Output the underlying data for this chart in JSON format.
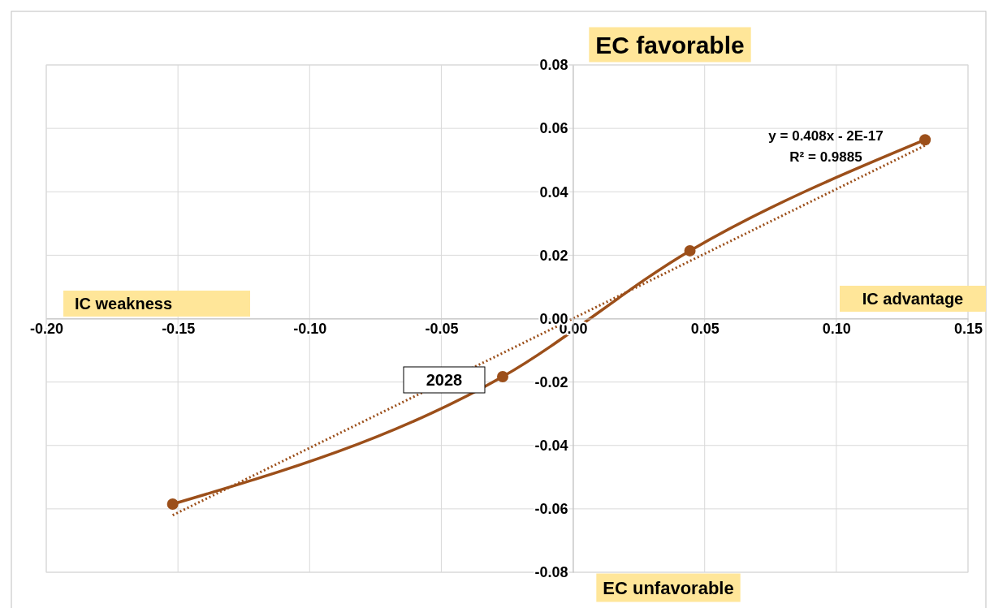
{
  "chart_data": {
    "type": "line",
    "x": [
      -0.152,
      -0.0267,
      0.0444,
      0.1337
    ],
    "xlim": [
      -0.2,
      0.15
    ],
    "xticks": [
      {
        "value": -0.2,
        "label": "-0.20"
      },
      {
        "value": -0.15,
        "label": "-0.15"
      },
      {
        "value": -0.1,
        "label": "-0.10"
      },
      {
        "value": -0.05,
        "label": "-0.05"
      },
      {
        "value": 0,
        "label": "0.00"
      },
      {
        "value": 0.05,
        "label": "0.05"
      },
      {
        "value": 0.1,
        "label": "0.10"
      },
      {
        "value": 0.15,
        "label": "0.15"
      }
    ],
    "ylim": [
      -0.08,
      0.08
    ],
    "yticks": [
      {
        "value": -0.08,
        "label": "-0.08"
      },
      {
        "value": -0.06,
        "label": "-0.06"
      },
      {
        "value": -0.04,
        "label": "-0.04"
      },
      {
        "value": -0.02,
        "label": "-0.02"
      },
      {
        "value": 0,
        "label": "0.00"
      },
      {
        "value": 0.02,
        "label": "0.02"
      },
      {
        "value": 0.04,
        "label": "0.04"
      },
      {
        "value": 0.06,
        "label": "0.06"
      },
      {
        "value": 0.08,
        "label": "0.08"
      }
    ],
    "grid": true,
    "series": [
      {
        "color": "#9c4f1a",
        "values": [
          -0.0585,
          -0.0183,
          0.0214,
          0.0564
        ],
        "marker": "circle",
        "line_style": "solid"
      },
      {
        "type": "line",
        "color": "#9c4f1a",
        "x": [
          -0.152,
          0.1337
        ],
        "values": [
          -0.062,
          0.0546
        ],
        "marker": "none",
        "line_style": "dotted"
      }
    ],
    "annotations": [
      "EC favorable",
      "EC unfavorable",
      "IC  weakness",
      "IC advantage",
      {
        "text": "2028",
        "x": -0.0267,
        "y": -0.0183
      },
      "y = 0.408x - 2E-17",
      "R² = 0.9885"
    ]
  }
}
